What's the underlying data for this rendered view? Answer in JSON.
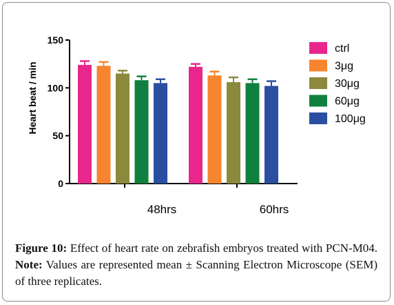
{
  "chart_data": {
    "type": "bar",
    "ylabel": "Heart beat / min",
    "xlabel": "",
    "ylim": [
      0,
      150
    ],
    "yticks": [
      "0",
      "50",
      "100",
      "150"
    ],
    "categories": [
      "48hrs",
      "60hrs"
    ],
    "series": [
      {
        "name": "ctrl",
        "color": "#e8268b",
        "values": [
          124,
          122
        ],
        "errors": [
          4,
          3
        ]
      },
      {
        "name": "3μg",
        "color": "#f7842e",
        "values": [
          123,
          113
        ],
        "errors": [
          4,
          4
        ]
      },
      {
        "name": "30μg",
        "color": "#8b8a3c",
        "values": [
          115,
          106
        ],
        "errors": [
          3,
          5
        ]
      },
      {
        "name": "60μg",
        "color": "#10803f",
        "values": [
          108,
          105
        ],
        "errors": [
          4,
          4
        ]
      },
      {
        "name": "100μg",
        "color": "#2a4ea0",
        "values": [
          105,
          102
        ],
        "errors": [
          4,
          5
        ]
      }
    ],
    "grid": false,
    "legend_position": "right"
  },
  "caption": {
    "label": "Figure 10:",
    "text1": " Effect of heart rate on zebrafish embryos treated with PCN-M04. ",
    "note_label": "Note:",
    "text2": " Values are represented mean ± Scanning Electron Microscope (SEM) of three replicates."
  }
}
